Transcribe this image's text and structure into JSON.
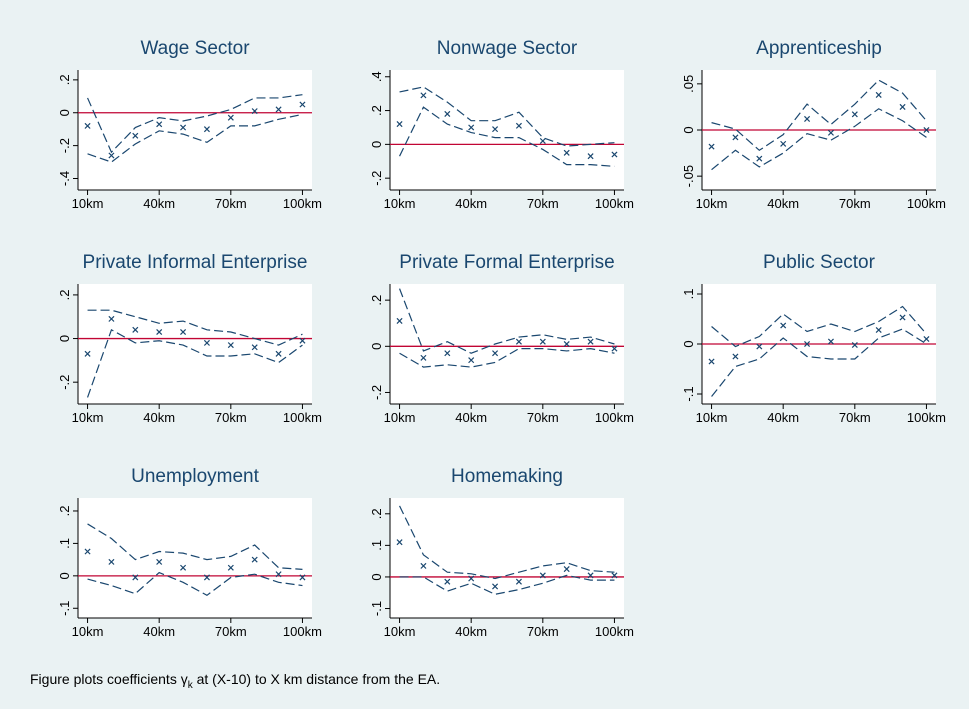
{
  "chart_data": [
    {
      "type": "line",
      "title": "Wage Sector",
      "x": [
        10,
        20,
        30,
        40,
        50,
        60,
        70,
        80,
        90,
        100
      ],
      "xlim": [
        6,
        104
      ],
      "xticks": [
        {
          "value": 10,
          "label": "10km"
        },
        {
          "value": 40,
          "label": "40km"
        },
        {
          "value": 70,
          "label": "70km"
        },
        {
          "value": 100,
          "label": "100km"
        }
      ],
      "ylim": [
        -0.47,
        0.26
      ],
      "yticks": [
        {
          "value": -0.4,
          "label": "-.4"
        },
        {
          "value": -0.2,
          "label": "-.2"
        },
        0,
        {
          "value": 0.2,
          "label": ".2"
        }
      ],
      "hline": 0,
      "hline_color": "#c10534",
      "series": [
        {
          "style": "marker",
          "color": "#1a476f",
          "values": [
            -0.08,
            -0.26,
            -0.14,
            -0.07,
            -0.09,
            -0.1,
            -0.03,
            0.01,
            0.02,
            0.05
          ]
        },
        {
          "style": "dashed",
          "color": "#1a476f",
          "values": [
            0.09,
            -0.24,
            -0.09,
            -0.03,
            -0.05,
            -0.02,
            0.02,
            0.09,
            0.09,
            0.11
          ]
        },
        {
          "style": "dashed",
          "color": "#1a476f",
          "values": [
            -0.25,
            -0.3,
            -0.19,
            -0.11,
            -0.13,
            -0.18,
            -0.08,
            -0.08,
            -0.04,
            -0.01
          ]
        }
      ]
    },
    {
      "type": "line",
      "title": "Nonwage Sector",
      "x": [
        10,
        20,
        30,
        40,
        50,
        60,
        70,
        80,
        90,
        100
      ],
      "xlim": [
        6,
        104
      ],
      "xticks": [
        {
          "value": 10,
          "label": "10km"
        },
        {
          "value": 40,
          "label": "40km"
        },
        {
          "value": 70,
          "label": "70km"
        },
        {
          "value": 100,
          "label": "100km"
        }
      ],
      "ylim": [
        -0.27,
        0.44
      ],
      "yticks": [
        {
          "value": -0.2,
          "label": "-.2"
        },
        0,
        {
          "value": 0.2,
          "label": ".2"
        },
        {
          "value": 0.4,
          "label": ".4"
        }
      ],
      "hline": 0,
      "hline_color": "#c10534",
      "series": [
        {
          "style": "marker",
          "color": "#1a476f",
          "values": [
            0.12,
            0.29,
            0.18,
            0.1,
            0.09,
            0.11,
            0.02,
            -0.05,
            -0.07,
            -0.06
          ]
        },
        {
          "style": "dashed",
          "color": "#1a476f",
          "values": [
            0.31,
            0.34,
            0.25,
            0.14,
            0.14,
            0.19,
            0.04,
            -0.01,
            0.0,
            0.01
          ]
        },
        {
          "style": "dashed",
          "color": "#1a476f",
          "values": [
            -0.07,
            0.22,
            0.12,
            0.07,
            0.04,
            0.04,
            -0.03,
            -0.12,
            -0.12,
            -0.13
          ]
        }
      ]
    },
    {
      "type": "line",
      "title": "Apprenticeship",
      "x": [
        10,
        20,
        30,
        40,
        50,
        60,
        70,
        80,
        90,
        100
      ],
      "xlim": [
        6,
        104
      ],
      "xticks": [
        {
          "value": 10,
          "label": "10km"
        },
        {
          "value": 40,
          "label": "40km"
        },
        {
          "value": 70,
          "label": "70km"
        },
        {
          "value": 100,
          "label": "100km"
        }
      ],
      "ylim": [
        -0.065,
        0.065
      ],
      "yticks": [
        {
          "value": -0.05,
          "label": "-.05"
        },
        0,
        {
          "value": 0.05,
          "label": ".05"
        }
      ],
      "hline": 0,
      "hline_color": "#c10534",
      "series": [
        {
          "style": "marker",
          "color": "#1a476f",
          "values": [
            -0.018,
            -0.008,
            -0.031,
            -0.015,
            0.012,
            -0.003,
            0.017,
            0.038,
            0.025,
            0.0
          ]
        },
        {
          "style": "dashed",
          "color": "#1a476f",
          "values": [
            0.008,
            0.001,
            -0.022,
            -0.005,
            0.028,
            0.006,
            0.028,
            0.054,
            0.04,
            0.01
          ]
        },
        {
          "style": "dashed",
          "color": "#1a476f",
          "values": [
            -0.043,
            -0.022,
            -0.04,
            -0.025,
            -0.004,
            -0.011,
            0.004,
            0.023,
            0.01,
            -0.008
          ]
        }
      ]
    },
    {
      "type": "line",
      "title": "Private Informal Enterprise",
      "x": [
        10,
        20,
        30,
        40,
        50,
        60,
        70,
        80,
        90,
        100
      ],
      "xlim": [
        6,
        104
      ],
      "xticks": [
        {
          "value": 10,
          "label": "10km"
        },
        {
          "value": 40,
          "label": "40km"
        },
        {
          "value": 70,
          "label": "70km"
        },
        {
          "value": 100,
          "label": "100km"
        }
      ],
      "ylim": [
        -0.3,
        0.25
      ],
      "yticks": [
        {
          "value": -0.2,
          "label": "-.2"
        },
        0,
        {
          "value": 0.2,
          "label": ".2"
        }
      ],
      "hline": 0,
      "hline_color": "#c10534",
      "series": [
        {
          "style": "marker",
          "color": "#1a476f",
          "values": [
            -0.07,
            0.09,
            0.04,
            0.03,
            0.03,
            -0.02,
            -0.03,
            -0.04,
            -0.07,
            -0.01
          ]
        },
        {
          "style": "dashed",
          "color": "#1a476f",
          "values": [
            0.13,
            0.13,
            0.1,
            0.07,
            0.08,
            0.04,
            0.03,
            0.0,
            -0.03,
            0.02
          ]
        },
        {
          "style": "dashed",
          "color": "#1a476f",
          "values": [
            -0.27,
            0.04,
            -0.02,
            -0.01,
            -0.03,
            -0.08,
            -0.08,
            -0.07,
            -0.11,
            -0.03
          ]
        }
      ]
    },
    {
      "type": "line",
      "title": "Private Formal Enterprise",
      "x": [
        10,
        20,
        30,
        40,
        50,
        60,
        70,
        80,
        90,
        100
      ],
      "xlim": [
        6,
        104
      ],
      "xticks": [
        {
          "value": 10,
          "label": "10km"
        },
        {
          "value": 40,
          "label": "40km"
        },
        {
          "value": 70,
          "label": "70km"
        },
        {
          "value": 100,
          "label": "100km"
        }
      ],
      "ylim": [
        -0.25,
        0.27
      ],
      "yticks": [
        {
          "value": -0.2,
          "label": "-.2"
        },
        0,
        {
          "value": 0.2,
          "label": ".2"
        }
      ],
      "hline": 0,
      "hline_color": "#c10534",
      "series": [
        {
          "style": "marker",
          "color": "#1a476f",
          "values": [
            0.11,
            -0.05,
            -0.03,
            -0.06,
            -0.03,
            0.02,
            0.02,
            0.01,
            0.02,
            -0.01
          ]
        },
        {
          "style": "dashed",
          "color": "#1a476f",
          "values": [
            0.25,
            -0.02,
            0.02,
            -0.03,
            0.01,
            0.04,
            0.05,
            0.03,
            0.04,
            0.01
          ]
        },
        {
          "style": "dashed",
          "color": "#1a476f",
          "values": [
            -0.03,
            -0.09,
            -0.08,
            -0.09,
            -0.07,
            -0.01,
            -0.01,
            -0.02,
            -0.01,
            -0.03
          ]
        }
      ]
    },
    {
      "type": "line",
      "title": "Public Sector",
      "x": [
        10,
        20,
        30,
        40,
        50,
        60,
        70,
        80,
        90,
        100
      ],
      "xlim": [
        6,
        104
      ],
      "xticks": [
        {
          "value": 10,
          "label": "10km"
        },
        {
          "value": 40,
          "label": "40km"
        },
        {
          "value": 70,
          "label": "70km"
        },
        {
          "value": 100,
          "label": "100km"
        }
      ],
      "ylim": [
        -0.12,
        0.12
      ],
      "yticks": [
        {
          "value": -0.1,
          "label": "-.1"
        },
        0,
        {
          "value": 0.1,
          "label": ".1"
        }
      ],
      "hline": 0,
      "hline_color": "#c10534",
      "series": [
        {
          "style": "marker",
          "color": "#1a476f",
          "values": [
            -0.035,
            -0.025,
            -0.005,
            0.037,
            0.0,
            0.005,
            -0.002,
            0.028,
            0.053,
            0.01
          ]
        },
        {
          "style": "dashed",
          "color": "#1a476f",
          "values": [
            0.035,
            -0.005,
            0.015,
            0.06,
            0.025,
            0.04,
            0.025,
            0.045,
            0.075,
            0.02
          ]
        },
        {
          "style": "dashed",
          "color": "#1a476f",
          "values": [
            -0.105,
            -0.045,
            -0.03,
            0.012,
            -0.025,
            -0.03,
            -0.03,
            0.012,
            0.03,
            0.0
          ]
        }
      ]
    },
    {
      "type": "line",
      "title": "Unemployment",
      "x": [
        10,
        20,
        30,
        40,
        50,
        60,
        70,
        80,
        90,
        100
      ],
      "xlim": [
        6,
        104
      ],
      "xticks": [
        {
          "value": 10,
          "label": "10km"
        },
        {
          "value": 40,
          "label": "40km"
        },
        {
          "value": 70,
          "label": "70km"
        },
        {
          "value": 100,
          "label": "100km"
        }
      ],
      "ylim": [
        -0.13,
        0.24
      ],
      "yticks": [
        {
          "value": -0.1,
          "label": "-.1"
        },
        0,
        {
          "value": 0.1,
          "label": ".1"
        },
        {
          "value": 0.2,
          "label": ".2"
        }
      ],
      "hline": 0,
      "hline_color": "#c10534",
      "series": [
        {
          "style": "marker",
          "color": "#1a476f",
          "values": [
            0.075,
            0.043,
            -0.005,
            0.043,
            0.025,
            -0.005,
            0.025,
            0.05,
            0.005,
            -0.005
          ]
        },
        {
          "style": "dashed",
          "color": "#1a476f",
          "values": [
            0.16,
            0.115,
            0.05,
            0.075,
            0.07,
            0.05,
            0.06,
            0.095,
            0.025,
            0.02
          ]
        },
        {
          "style": "dashed",
          "color": "#1a476f",
          "values": [
            -0.01,
            -0.03,
            -0.055,
            0.01,
            -0.02,
            -0.06,
            -0.005,
            0.005,
            -0.02,
            -0.03
          ]
        }
      ]
    },
    {
      "type": "line",
      "title": "Homemaking",
      "x": [
        10,
        20,
        30,
        40,
        50,
        60,
        70,
        80,
        90,
        100
      ],
      "xlim": [
        6,
        104
      ],
      "xticks": [
        {
          "value": 10,
          "label": "10km"
        },
        {
          "value": 40,
          "label": "40km"
        },
        {
          "value": 70,
          "label": "70km"
        },
        {
          "value": 100,
          "label": "100km"
        }
      ],
      "ylim": [
        -0.13,
        0.25
      ],
      "yticks": [
        {
          "value": -0.1,
          "label": "-.1"
        },
        0,
        {
          "value": 0.1,
          "label": ".1"
        },
        {
          "value": 0.2,
          "label": ".2"
        }
      ],
      "hline": 0,
      "hline_color": "#c10534",
      "series": [
        {
          "style": "marker",
          "color": "#1a476f",
          "values": [
            0.11,
            0.035,
            -0.015,
            -0.005,
            -0.03,
            -0.015,
            0.005,
            0.025,
            0.005,
            0.005
          ]
        },
        {
          "style": "dashed",
          "color": "#1a476f",
          "values": [
            0.225,
            0.07,
            0.015,
            0.01,
            -0.005,
            0.015,
            0.035,
            0.045,
            0.02,
            0.015
          ]
        },
        {
          "style": "dashed",
          "color": "#1a476f",
          "values": [
            0.0,
            0.0,
            -0.045,
            -0.02,
            -0.055,
            -0.04,
            -0.02,
            0.005,
            -0.01,
            -0.01
          ]
        }
      ]
    }
  ],
  "note": {
    "before": "Figure plots coefficients ",
    "symbol": "γ",
    "sub": "k",
    "after": " at (X-10) to X km distance from the EA."
  }
}
